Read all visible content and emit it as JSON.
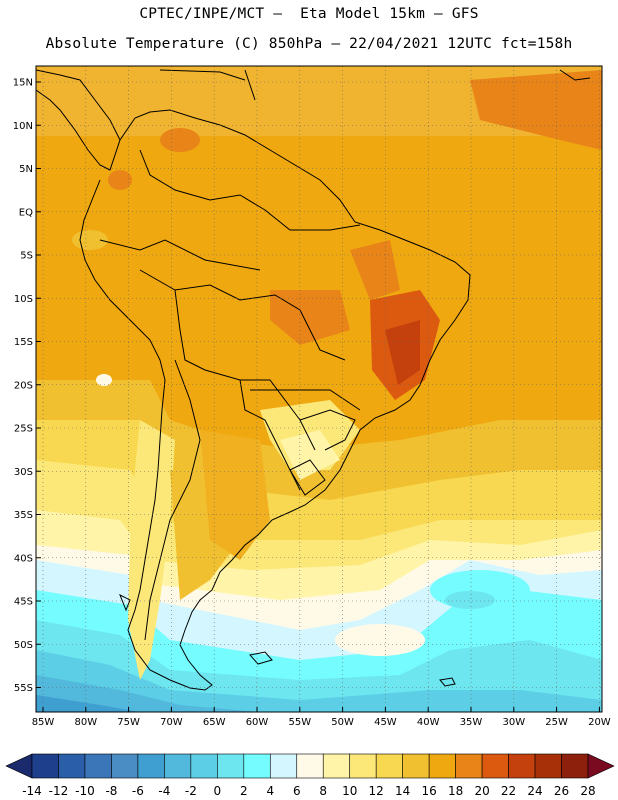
{
  "header": {
    "line1": "CPTEC/INPE/MCT –  Eta Model 15km – GFS",
    "line2": "Absolute Temperature (C) 850hPa – 22/04/2021 12UTC fct=158h"
  },
  "axes": {
    "lat_labels": [
      "15N",
      "10N",
      "5N",
      "EQ",
      "5S",
      "10S",
      "15S",
      "20S",
      "25S",
      "30S",
      "35S",
      "40S",
      "45S",
      "50S",
      "55S"
    ],
    "lon_labels": [
      "85W",
      "80W",
      "75W",
      "70W",
      "65W",
      "60W",
      "55W",
      "50W",
      "45W",
      "40W",
      "35W",
      "30W",
      "25W",
      "20W"
    ]
  },
  "colorbar": {
    "labels": [
      "-14",
      "-12",
      "-10",
      "-8",
      "-6",
      "-4",
      "-2",
      "0",
      "2",
      "4",
      "6",
      "8",
      "10",
      "12",
      "14",
      "16",
      "18",
      "20",
      "22",
      "24",
      "26",
      "28"
    ],
    "colors": [
      "#1e3f8c",
      "#2a5ea8",
      "#3a76b8",
      "#4a8cc4",
      "#3e9fd0",
      "#52b8dc",
      "#5ccfe6",
      "#6ee6f0",
      "#74fcff",
      "#d4f6ff",
      "#fffae8",
      "#fff4a8",
      "#fce878",
      "#f8d850",
      "#f0c030",
      "#f0a810",
      "#e88418",
      "#dc5a10",
      "#c4400c",
      "#a83008",
      "#8c200c"
    ],
    "under_color": "#1a2a6c",
    "over_color": "#7a0a20"
  }
}
